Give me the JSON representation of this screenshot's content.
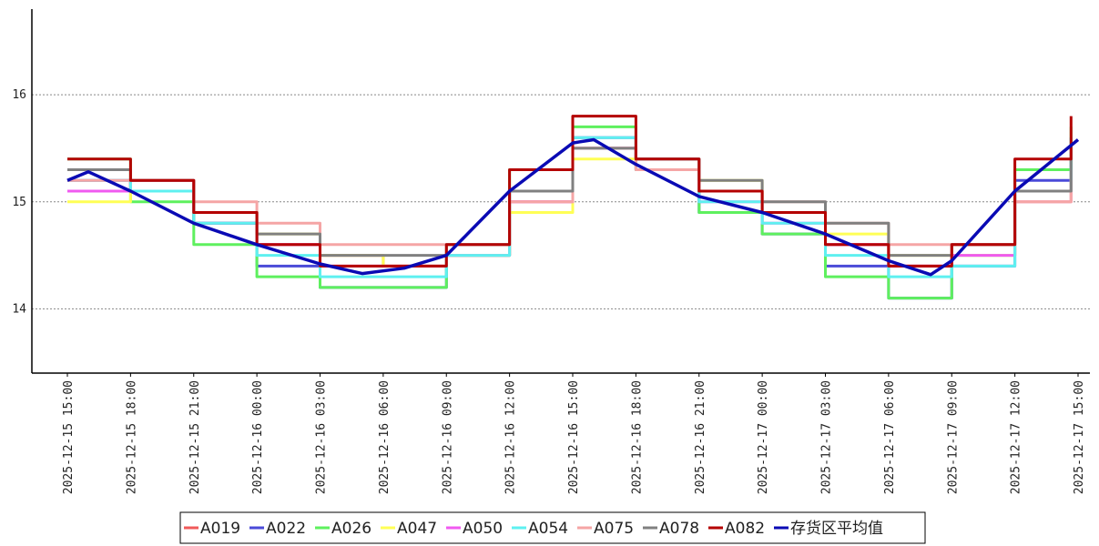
{
  "chart_data": {
    "type": "line",
    "title": "",
    "xlabel": "",
    "ylabel": "",
    "ylim": [
      13.4,
      16.8
    ],
    "yticks": [
      14,
      15,
      16
    ],
    "ytick_labels": [
      "14",
      "15",
      "16"
    ],
    "grid": "horizontal dotted",
    "legend_position": "bottom",
    "xticks": [
      "2025-12-15 15:00",
      "2025-12-15 18:00",
      "2025-12-15 21:00",
      "2025-12-16 00:00",
      "2025-12-16 03:00",
      "2025-12-16 06:00",
      "2025-12-16 09:00",
      "2025-12-16 12:00",
      "2025-12-16 15:00",
      "2025-12-16 18:00",
      "2025-12-16 21:00",
      "2025-12-17 00:00",
      "2025-12-17 03:00",
      "2025-12-17 06:00",
      "2025-12-17 09:00",
      "2025-12-17 12:00",
      "2025-12-17 15:00"
    ],
    "series": [
      {
        "name": "A019",
        "color": "#f05a5a",
        "style": "step",
        "x": [
          "2025-12-15 15:00",
          "2025-12-15 18:00",
          "2025-12-15 21:00",
          "2025-12-16 00:00",
          "2025-12-16 03:00",
          "2025-12-16 06:00",
          "2025-12-16 09:00",
          "2025-12-16 12:00",
          "2025-12-16 15:00",
          "2025-12-16 18:00",
          "2025-12-16 21:00",
          "2025-12-17 00:00",
          "2025-12-17 03:00",
          "2025-12-17 06:00",
          "2025-12-17 09:00",
          "2025-12-17 12:00",
          "2025-12-17 14:40"
        ],
        "values": [
          15.1,
          15.2,
          14.8,
          14.6,
          14.5,
          14.4,
          14.5,
          15.0,
          15.5,
          15.4,
          15.1,
          14.9,
          14.6,
          14.4,
          14.6,
          15.1,
          15.4
        ]
      },
      {
        "name": "A022",
        "color": "#4a4ad8",
        "style": "step",
        "x": [
          "2025-12-15 15:00",
          "2025-12-15 18:00",
          "2025-12-15 21:00",
          "2025-12-16 00:00",
          "2025-12-16 03:00",
          "2025-12-16 06:00",
          "2025-12-16 09:00",
          "2025-12-16 12:00",
          "2025-12-16 15:00",
          "2025-12-16 18:00",
          "2025-12-16 21:00",
          "2025-12-17 00:00",
          "2025-12-17 03:00",
          "2025-12-17 06:00",
          "2025-12-17 09:00",
          "2025-12-17 12:00",
          "2025-12-17 14:40"
        ],
        "values": [
          15.2,
          15.1,
          14.8,
          14.4,
          14.2,
          14.2,
          14.5,
          15.1,
          15.6,
          15.3,
          14.9,
          14.7,
          14.4,
          14.1,
          14.4,
          15.2,
          15.6
        ]
      },
      {
        "name": "A026",
        "color": "#5ef05e",
        "style": "step",
        "x": [
          "2025-12-15 15:00",
          "2025-12-15 18:00",
          "2025-12-15 21:00",
          "2025-12-16 00:00",
          "2025-12-16 03:00",
          "2025-12-16 06:00",
          "2025-12-16 09:00",
          "2025-12-16 12:00",
          "2025-12-16 15:00",
          "2025-12-16 18:00",
          "2025-12-16 21:00",
          "2025-12-17 00:00",
          "2025-12-17 03:00",
          "2025-12-17 06:00",
          "2025-12-17 09:00",
          "2025-12-17 12:00",
          "2025-12-17 14:40"
        ],
        "values": [
          15.4,
          15.0,
          14.6,
          14.3,
          14.2,
          14.2,
          14.5,
          15.3,
          15.7,
          15.3,
          14.9,
          14.7,
          14.3,
          14.1,
          14.5,
          15.3,
          15.7
        ]
      },
      {
        "name": "A047",
        "color": "#ffff55",
        "style": "step",
        "x": [
          "2025-12-15 15:00",
          "2025-12-15 18:00",
          "2025-12-15 21:00",
          "2025-12-16 00:00",
          "2025-12-16 03:00",
          "2025-12-16 06:00",
          "2025-12-16 09:00",
          "2025-12-16 12:00",
          "2025-12-16 15:00",
          "2025-12-16 18:00",
          "2025-12-16 21:00",
          "2025-12-17 00:00",
          "2025-12-17 03:00",
          "2025-12-17 06:00",
          "2025-12-17 09:00",
          "2025-12-17 12:00",
          "2025-12-17 14:40"
        ],
        "values": [
          15.0,
          15.1,
          14.9,
          14.7,
          14.5,
          14.4,
          14.5,
          14.9,
          15.4,
          15.4,
          15.2,
          14.9,
          14.7,
          14.5,
          14.5,
          15.0,
          15.3
        ]
      },
      {
        "name": "A050",
        "color": "#f05af0",
        "style": "step",
        "x": [
          "2025-12-15 15:00",
          "2025-12-15 18:00",
          "2025-12-15 21:00",
          "2025-12-16 00:00",
          "2025-12-16 03:00",
          "2025-12-16 06:00",
          "2025-12-16 09:00",
          "2025-12-16 12:00",
          "2025-12-16 15:00",
          "2025-12-16 18:00",
          "2025-12-16 21:00",
          "2025-12-17 00:00",
          "2025-12-17 03:00",
          "2025-12-17 06:00",
          "2025-12-17 09:00",
          "2025-12-17 12:00",
          "2025-12-17 14:40"
        ],
        "values": [
          15.1,
          15.2,
          14.9,
          14.6,
          14.4,
          14.4,
          14.5,
          15.0,
          15.5,
          15.4,
          15.0,
          14.8,
          14.6,
          14.4,
          14.5,
          15.0,
          15.3
        ]
      },
      {
        "name": "A054",
        "color": "#5ef0f0",
        "style": "step",
        "x": [
          "2025-12-15 15:00",
          "2025-12-15 18:00",
          "2025-12-15 21:00",
          "2025-12-16 00:00",
          "2025-12-16 03:00",
          "2025-12-16 06:00",
          "2025-12-16 09:00",
          "2025-12-16 12:00",
          "2025-12-16 15:00",
          "2025-12-16 18:00",
          "2025-12-16 21:00",
          "2025-12-17 00:00",
          "2025-12-17 03:00",
          "2025-12-17 06:00",
          "2025-12-17 09:00",
          "2025-12-17 12:00",
          "2025-12-17 14:40"
        ],
        "values": [
          15.2,
          15.1,
          14.8,
          14.5,
          14.3,
          14.3,
          14.5,
          15.1,
          15.6,
          15.4,
          15.0,
          14.8,
          14.5,
          14.3,
          14.4,
          15.1,
          15.6
        ]
      },
      {
        "name": "A075",
        "color": "#f5a5a5",
        "style": "step",
        "x": [
          "2025-12-15 15:00",
          "2025-12-15 18:00",
          "2025-12-15 21:00",
          "2025-12-16 00:00",
          "2025-12-16 03:00",
          "2025-12-16 06:00",
          "2025-12-16 09:00",
          "2025-12-16 12:00",
          "2025-12-16 15:00",
          "2025-12-16 18:00",
          "2025-12-16 21:00",
          "2025-12-17 00:00",
          "2025-12-17 03:00",
          "2025-12-17 06:00",
          "2025-12-17 09:00",
          "2025-12-17 12:00",
          "2025-12-17 14:40"
        ],
        "values": [
          15.2,
          15.2,
          15.0,
          14.8,
          14.6,
          14.6,
          14.6,
          15.0,
          15.5,
          15.3,
          15.1,
          15.0,
          14.8,
          14.6,
          14.6,
          15.0,
          15.2
        ]
      },
      {
        "name": "A078",
        "color": "#808080",
        "style": "step",
        "x": [
          "2025-12-15 15:00",
          "2025-12-15 18:00",
          "2025-12-15 21:00",
          "2025-12-16 00:00",
          "2025-12-16 03:00",
          "2025-12-16 06:00",
          "2025-12-16 09:00",
          "2025-12-16 12:00",
          "2025-12-16 15:00",
          "2025-12-16 18:00",
          "2025-12-16 21:00",
          "2025-12-17 00:00",
          "2025-12-17 03:00",
          "2025-12-17 06:00",
          "2025-12-17 09:00",
          "2025-12-17 12:00",
          "2025-12-17 14:40"
        ],
        "values": [
          15.3,
          15.2,
          14.9,
          14.7,
          14.5,
          14.5,
          14.6,
          15.1,
          15.5,
          15.4,
          15.2,
          15.0,
          14.8,
          14.5,
          14.6,
          15.1,
          15.5
        ]
      },
      {
        "name": "A082",
        "color": "#b40000",
        "style": "step",
        "x": [
          "2025-12-15 15:00",
          "2025-12-15 18:00",
          "2025-12-15 21:00",
          "2025-12-16 00:00",
          "2025-12-16 03:00",
          "2025-12-16 06:00",
          "2025-12-16 09:00",
          "2025-12-16 12:00",
          "2025-12-16 15:00",
          "2025-12-16 18:00",
          "2025-12-16 21:00",
          "2025-12-17 00:00",
          "2025-12-17 03:00",
          "2025-12-17 06:00",
          "2025-12-17 09:00",
          "2025-12-17 12:00",
          "2025-12-17 14:40"
        ],
        "values": [
          15.4,
          15.2,
          14.9,
          14.6,
          14.4,
          14.4,
          14.6,
          15.3,
          15.8,
          15.4,
          15.1,
          14.9,
          14.6,
          14.4,
          14.6,
          15.4,
          15.8
        ]
      },
      {
        "name": "存货区平均值",
        "color": "#0a0ab4",
        "style": "line",
        "x": [
          "2025-12-15 15:00",
          "2025-12-15 16:00",
          "2025-12-15 18:00",
          "2025-12-15 21:00",
          "2025-12-16 00:00",
          "2025-12-16 03:00",
          "2025-12-16 05:00",
          "2025-12-16 07:00",
          "2025-12-16 09:00",
          "2025-12-16 12:00",
          "2025-12-16 15:00",
          "2025-12-16 16:00",
          "2025-12-16 18:00",
          "2025-12-16 21:00",
          "2025-12-17 00:00",
          "2025-12-17 03:00",
          "2025-12-17 06:00",
          "2025-12-17 08:00",
          "2025-12-17 09:00",
          "2025-12-17 12:00",
          "2025-12-17 15:00"
        ],
        "values": [
          15.2,
          15.28,
          15.1,
          14.8,
          14.6,
          14.42,
          14.33,
          14.38,
          14.5,
          15.1,
          15.55,
          15.58,
          15.35,
          15.05,
          14.9,
          14.7,
          14.45,
          14.32,
          14.45,
          15.1,
          15.58
        ]
      }
    ]
  }
}
